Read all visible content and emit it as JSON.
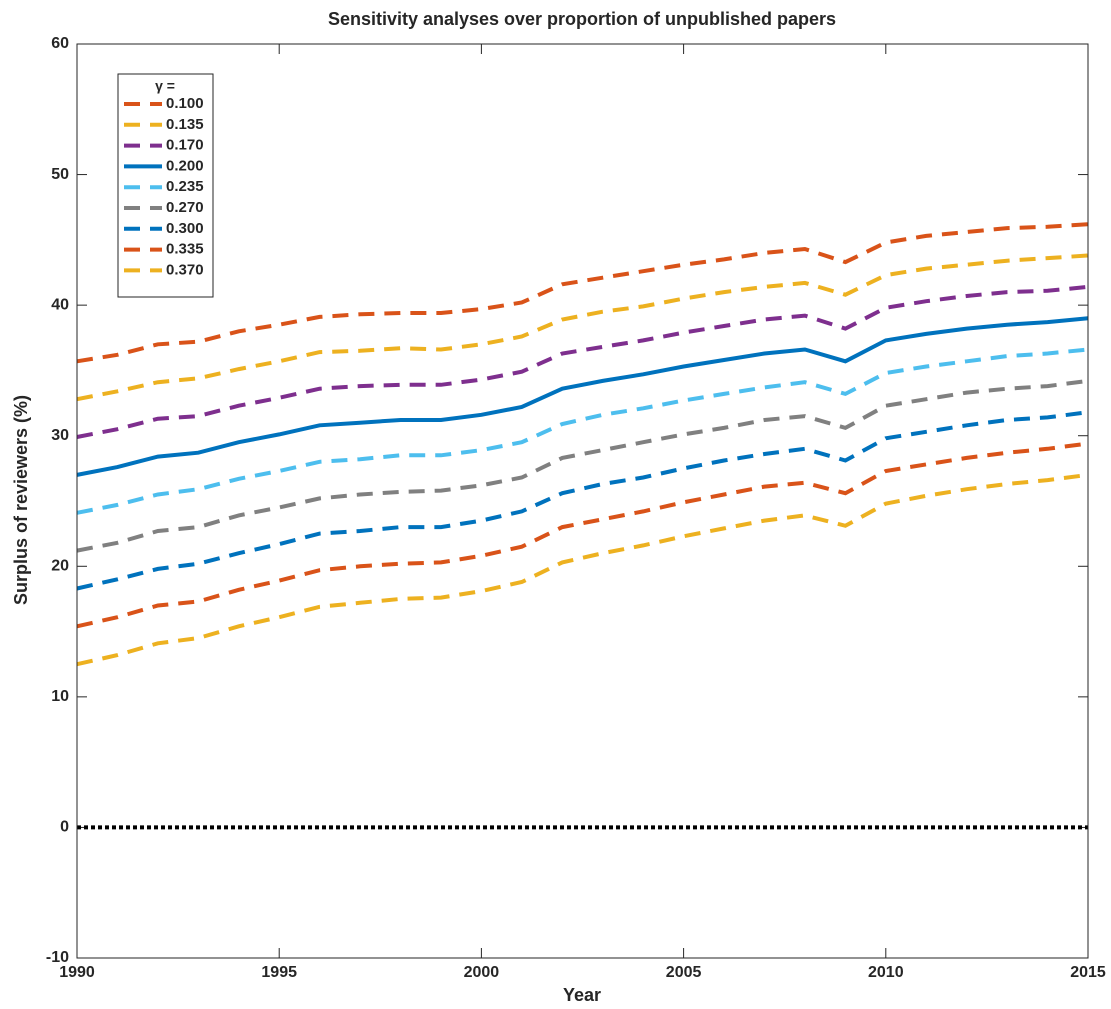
{
  "chart_data": {
    "type": "line",
    "title": "Sensitivity analyses over proportion of unpublished papers",
    "xlabel": "Year",
    "ylabel": "Surplus of reviewers (%)",
    "legend_title": "γ =",
    "legend": "northwest",
    "x": [
      1990,
      1991,
      1992,
      1993,
      1994,
      1995,
      1996,
      1997,
      1998,
      1999,
      2000,
      2001,
      2002,
      2003,
      2004,
      2005,
      2006,
      2007,
      2008,
      2009,
      2010,
      2011,
      2012,
      2013,
      2014,
      2015
    ],
    "xlim": [
      1990,
      2015
    ],
    "xticks": [
      1990,
      1995,
      2000,
      2005,
      2010,
      2015
    ],
    "ylim": [
      -10,
      60
    ],
    "yticks": [
      -10,
      0,
      10,
      20,
      30,
      40,
      50,
      60
    ],
    "hlines": [
      0
    ],
    "series": [
      {
        "name": "0.100",
        "color": "#d95319",
        "line_style": "dashed",
        "values": [
          35.7,
          36.2,
          37.0,
          37.2,
          38.0,
          38.5,
          39.1,
          39.3,
          39.4,
          39.4,
          39.7,
          40.2,
          41.6,
          42.1,
          42.6,
          43.1,
          43.5,
          44.0,
          44.3,
          43.3,
          44.8,
          45.3,
          45.6,
          45.9,
          46.0,
          46.2
        ]
      },
      {
        "name": "0.135",
        "color": "#edb120",
        "line_style": "dashed",
        "values": [
          32.8,
          33.4,
          34.1,
          34.4,
          35.1,
          35.7,
          36.4,
          36.5,
          36.7,
          36.6,
          37.0,
          37.6,
          38.9,
          39.5,
          39.9,
          40.5,
          41.0,
          41.4,
          41.7,
          40.8,
          42.3,
          42.8,
          43.1,
          43.4,
          43.6,
          43.8
        ]
      },
      {
        "name": "0.170",
        "color": "#7e2f8e",
        "line_style": "dashed",
        "values": [
          29.9,
          30.5,
          31.3,
          31.5,
          32.3,
          32.9,
          33.6,
          33.8,
          33.9,
          33.9,
          34.3,
          34.9,
          36.3,
          36.8,
          37.3,
          37.9,
          38.4,
          38.9,
          39.2,
          38.2,
          39.8,
          40.3,
          40.7,
          41.0,
          41.1,
          41.4
        ]
      },
      {
        "name": "0.200",
        "color": "#0072bd",
        "line_style": "solid",
        "values": [
          27.0,
          27.6,
          28.4,
          28.7,
          29.5,
          30.1,
          30.8,
          31.0,
          31.2,
          31.2,
          31.6,
          32.2,
          33.6,
          34.2,
          34.7,
          35.3,
          35.8,
          36.3,
          36.6,
          35.7,
          37.3,
          37.8,
          38.2,
          38.5,
          38.7,
          39.0
        ]
      },
      {
        "name": "0.235",
        "color": "#4dbeee",
        "line_style": "dashed",
        "values": [
          24.1,
          24.7,
          25.5,
          25.9,
          26.7,
          27.3,
          28.0,
          28.2,
          28.5,
          28.5,
          28.9,
          29.5,
          30.9,
          31.6,
          32.1,
          32.7,
          33.2,
          33.7,
          34.1,
          33.2,
          34.8,
          35.3,
          35.7,
          36.1,
          36.3,
          36.6
        ]
      },
      {
        "name": "0.270",
        "color": "#808080",
        "line_style": "dashed",
        "values": [
          21.2,
          21.8,
          22.7,
          23.0,
          23.9,
          24.5,
          25.2,
          25.5,
          25.7,
          25.8,
          26.2,
          26.8,
          28.3,
          28.9,
          29.5,
          30.1,
          30.6,
          31.2,
          31.5,
          30.6,
          32.3,
          32.8,
          33.3,
          33.6,
          33.8,
          34.2
        ]
      },
      {
        "name": "0.300",
        "color": "#0072bd",
        "line_style": "dashed",
        "values": [
          18.3,
          19.0,
          19.8,
          20.2,
          21.0,
          21.7,
          22.5,
          22.7,
          23.0,
          23.0,
          23.5,
          24.2,
          25.6,
          26.3,
          26.8,
          27.5,
          28.1,
          28.6,
          29.0,
          28.1,
          29.8,
          30.3,
          30.8,
          31.2,
          31.4,
          31.8
        ]
      },
      {
        "name": "0.335",
        "color": "#d95319",
        "line_style": "dashed",
        "values": [
          15.4,
          16.1,
          17.0,
          17.3,
          18.2,
          18.9,
          19.7,
          20.0,
          20.2,
          20.3,
          20.8,
          21.5,
          23.0,
          23.6,
          24.2,
          24.9,
          25.5,
          26.1,
          26.4,
          25.6,
          27.3,
          27.8,
          28.3,
          28.7,
          29.0,
          29.4
        ]
      },
      {
        "name": "0.370",
        "color": "#edb120",
        "line_style": "dashed",
        "values": [
          12.5,
          13.2,
          14.1,
          14.5,
          15.4,
          16.1,
          16.9,
          17.2,
          17.5,
          17.6,
          18.1,
          18.8,
          20.3,
          21.0,
          21.6,
          22.3,
          22.9,
          23.5,
          23.9,
          23.1,
          24.8,
          25.4,
          25.9,
          26.3,
          26.6,
          27.0
        ]
      }
    ]
  }
}
